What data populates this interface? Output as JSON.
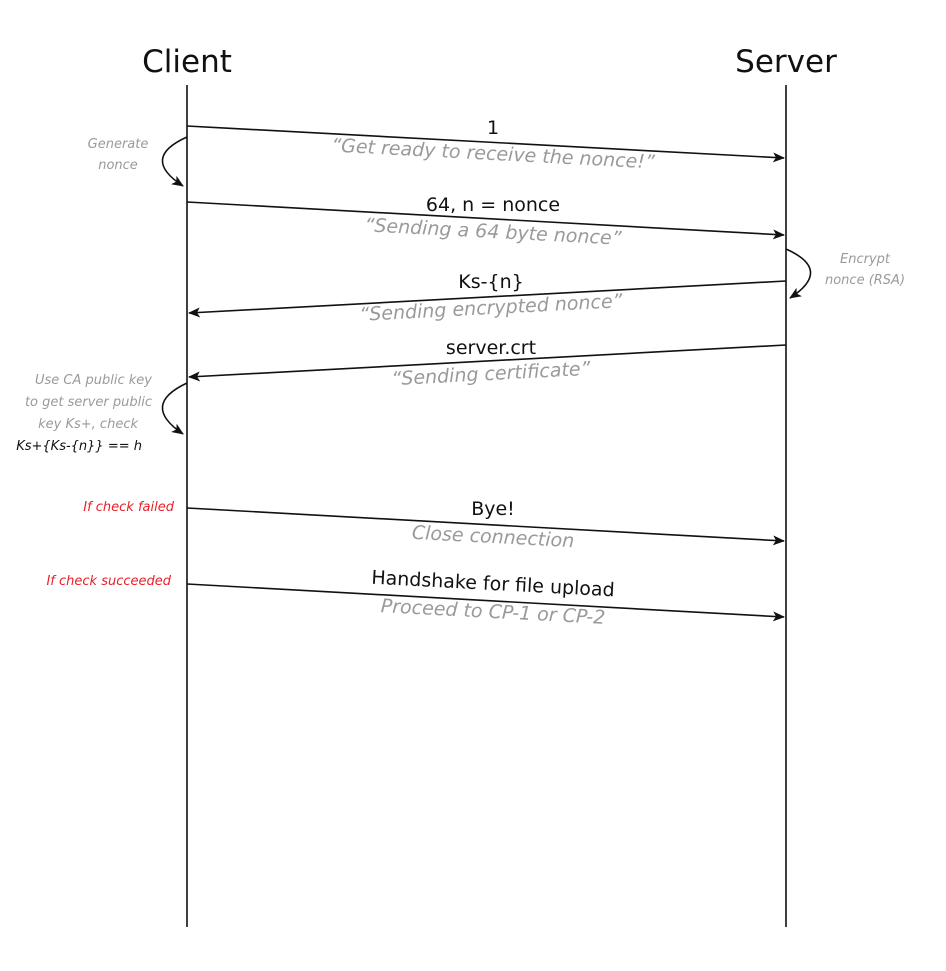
{
  "participants": {
    "client": "Client",
    "server": "Server"
  },
  "messages": [
    {
      "label": "1",
      "subtitle": "“Get ready to receive the nonce!”",
      "direction": "client-to-server"
    },
    {
      "label": "64, n = nonce",
      "subtitle": "“Sending a 64 byte nonce”",
      "direction": "client-to-server"
    },
    {
      "label": "Ks-{n}",
      "subtitle": "“Sending encrypted nonce”",
      "direction": "server-to-client"
    },
    {
      "label": "server.crt",
      "subtitle": "“Sending certificate”",
      "direction": "server-to-client"
    },
    {
      "label": "Bye!",
      "subtitle": "Close connection",
      "direction": "client-to-server"
    },
    {
      "label": "Handshake for file upload",
      "subtitle": "Proceed to CP-1 or CP-2",
      "direction": "client-to-server"
    }
  ],
  "notes": {
    "generate_nonce": [
      "Generate",
      "nonce"
    ],
    "encrypt_nonce": [
      "Encrypt",
      "nonce (RSA)"
    ],
    "verify": [
      "Use CA public key",
      "to get server public",
      "key Ks+, check"
    ],
    "verify_formula": "Ks+{Ks-{n}} == h",
    "check_failed": "If check failed",
    "check_succeeded": "If check succeeded"
  },
  "colors": {
    "line": "#111111",
    "annotation": "#9a9a9a",
    "condition": "#e8202a"
  }
}
